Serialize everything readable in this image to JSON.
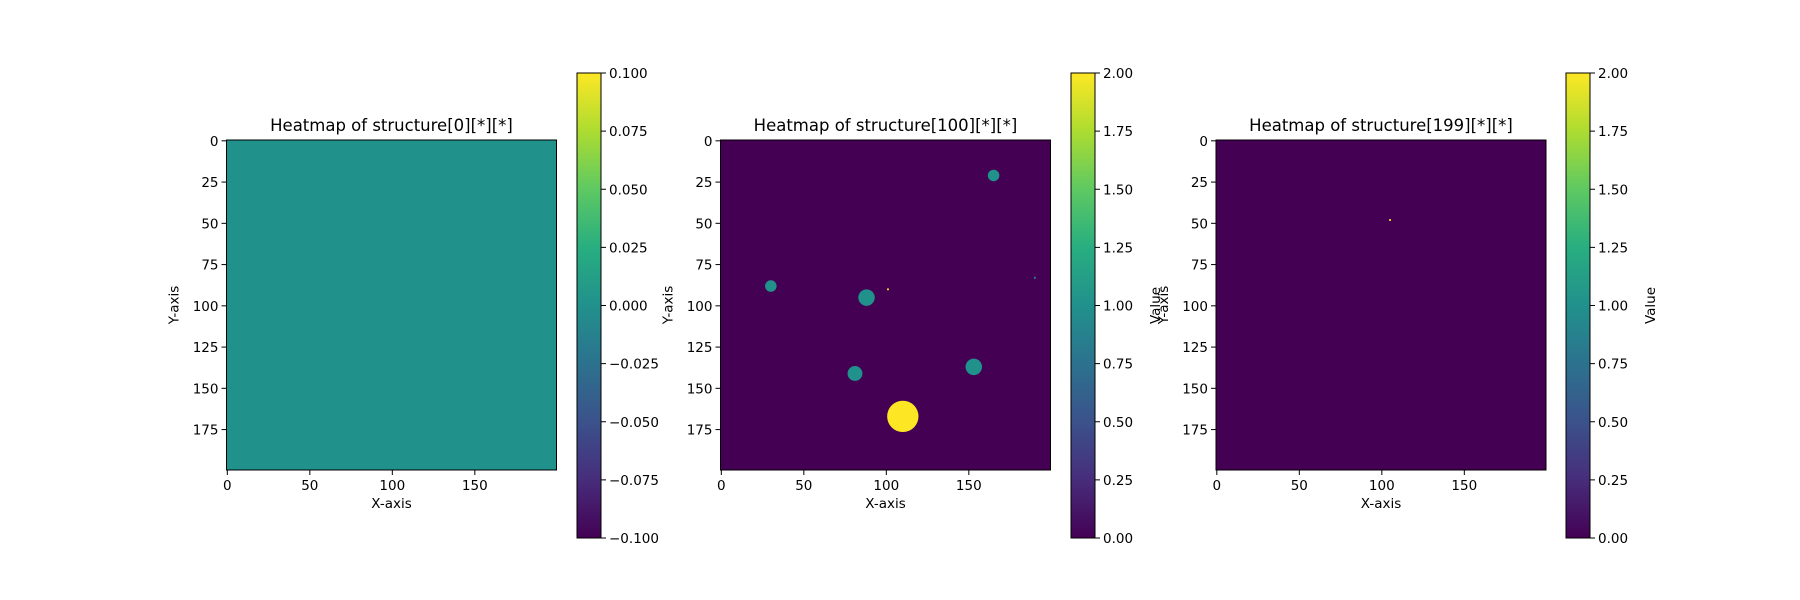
{
  "chart_data": [
    {
      "type": "heatmap",
      "title": "Heatmap of structure[0][*][*]",
      "xlabel": "X-axis",
      "ylabel": "Y-axis",
      "colorbar_label": "",
      "colormap": "viridis",
      "grid_shape": [
        200,
        200
      ],
      "xlim": [
        0,
        199
      ],
      "ylim": [
        199,
        0
      ],
      "x_ticks": [
        0,
        50,
        100,
        150
      ],
      "x_tick_labels": [
        "0",
        "50",
        "100",
        "150"
      ],
      "y_ticks": [
        0,
        25,
        50,
        75,
        100,
        125,
        150,
        175
      ],
      "y_tick_labels": [
        "0",
        "25",
        "50",
        "75",
        "100",
        "125",
        "150",
        "175"
      ],
      "vmin": -0.1,
      "vmax": 0.1,
      "background_value": 0,
      "colorbar_ticks": [
        0.1,
        0.075,
        0.05,
        0.025,
        0,
        -0.025,
        -0.05,
        -0.075,
        -0.1
      ],
      "colorbar_tick_labels": [
        "0.100",
        "0.075",
        "0.050",
        "0.025",
        "0.000",
        "−0.025",
        "−0.050",
        "−0.075",
        "−0.100"
      ],
      "features": []
    },
    {
      "type": "heatmap",
      "title": "Heatmap of structure[100][*][*]",
      "xlabel": "X-axis",
      "ylabel": "Y-axis",
      "colorbar_label": "Value",
      "colormap": "viridis",
      "grid_shape": [
        200,
        200
      ],
      "xlim": [
        0,
        199
      ],
      "ylim": [
        199,
        0
      ],
      "x_ticks": [
        0,
        50,
        100,
        150
      ],
      "x_tick_labels": [
        "0",
        "50",
        "100",
        "150"
      ],
      "y_ticks": [
        0,
        25,
        50,
        75,
        100,
        125,
        150,
        175
      ],
      "y_tick_labels": [
        "0",
        "25",
        "50",
        "75",
        "100",
        "125",
        "150",
        "175"
      ],
      "vmin": 0,
      "vmax": 2,
      "background_value": 0,
      "colorbar_ticks": [
        2,
        1.75,
        1.5,
        1.25,
        1,
        0.75,
        0.5,
        0.25,
        0
      ],
      "colorbar_tick_labels": [
        "2.00",
        "1.75",
        "1.50",
        "1.25",
        "1.00",
        "0.75",
        "0.50",
        "0.25",
        "0.00"
      ],
      "features": [
        {
          "cx": 165,
          "cy": 21,
          "r": 3,
          "value": 1
        },
        {
          "cx": 30,
          "cy": 88,
          "r": 3,
          "value": 1
        },
        {
          "cx": 88,
          "cy": 95,
          "r": 4.5,
          "value": 1
        },
        {
          "cx": 101,
          "cy": 90,
          "r": 0.6,
          "value": 2
        },
        {
          "cx": 190,
          "cy": 83,
          "r": 0.5,
          "value": 1
        },
        {
          "cx": 81,
          "cy": 141,
          "r": 4,
          "value": 1
        },
        {
          "cx": 153,
          "cy": 137,
          "r": 4.5,
          "value": 1
        },
        {
          "cx": 110,
          "cy": 167,
          "r": 9,
          "value": 2
        }
      ]
    },
    {
      "type": "heatmap",
      "title": "Heatmap of structure[199][*][*]",
      "xlabel": "X-axis",
      "ylabel": "Y-axis",
      "colorbar_label": "Value",
      "colormap": "viridis",
      "grid_shape": [
        200,
        200
      ],
      "xlim": [
        0,
        199
      ],
      "ylim": [
        199,
        0
      ],
      "x_ticks": [
        0,
        50,
        100,
        150
      ],
      "x_tick_labels": [
        "0",
        "50",
        "100",
        "150"
      ],
      "y_ticks": [
        0,
        25,
        50,
        75,
        100,
        125,
        150,
        175
      ],
      "y_tick_labels": [
        "0",
        "25",
        "50",
        "75",
        "100",
        "125",
        "150",
        "175"
      ],
      "vmin": 0,
      "vmax": 2,
      "background_value": 0,
      "colorbar_ticks": [
        2,
        1.75,
        1.5,
        1.25,
        1,
        0.75,
        0.5,
        0.25,
        0
      ],
      "colorbar_tick_labels": [
        "2.00",
        "1.75",
        "1.50",
        "1.25",
        "1.00",
        "0.75",
        "0.50",
        "0.25",
        "0.00"
      ],
      "features": [
        {
          "cx": 105,
          "cy": 48,
          "r": 0.6,
          "value": 2
        }
      ]
    }
  ]
}
